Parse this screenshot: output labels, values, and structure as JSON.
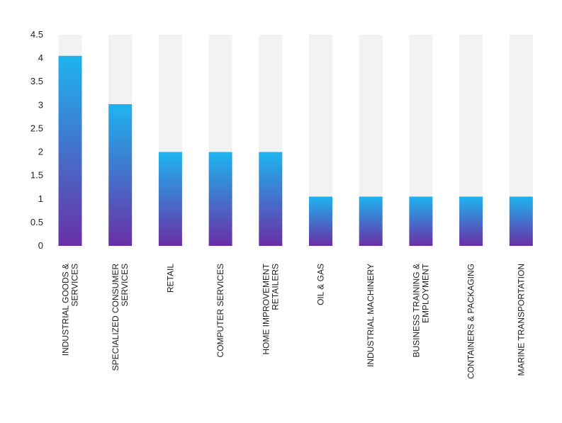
{
  "chart_data": {
    "type": "bar",
    "categories": [
      "INDUSTRIAL GOODS & SERVICES",
      "SPECIALIZED CONSUMER SERVICES",
      "RETAIL",
      "COMPUTER SERVICES",
      "HOME IMPROVEMENT RETAILERS",
      "OIL & GAS",
      "INDUSTRIAL MACHINERY",
      "BUSINESS TRAINING & EMPLOYMENT",
      "CONTAINERS & PACKAGING",
      "MARINE TRANSPORTATION"
    ],
    "category_lines": [
      [
        "INDUSTRIAL GOODS &",
        "SERVICES"
      ],
      [
        "SPECIALIZED CONSUMER",
        "SERVICES"
      ],
      [
        "RETAIL"
      ],
      [
        "COMPUTER SERVICES"
      ],
      [
        "HOME IMPROVEMENT",
        "RETAILERS"
      ],
      [
        "OIL & GAS"
      ],
      [
        "INDUSTRIAL MACHINERY"
      ],
      [
        "BUSINESS TRAINING &",
        "EMPLOYMENT"
      ],
      [
        "CONTAINERS & PACKAGING"
      ],
      [
        "MARINE TRANSPORTATION"
      ]
    ],
    "values": [
      4.05,
      3.02,
      2.0,
      2.0,
      2.0,
      1.05,
      1.05,
      1.05,
      1.05,
      1.05
    ],
    "ylim": [
      0,
      4.5
    ],
    "yticks": [
      "0",
      "0.5",
      "1",
      "1.5",
      "2",
      "2.5",
      "3",
      "3.5",
      "4",
      "4.5"
    ],
    "title": "",
    "xlabel": "",
    "ylabel": "",
    "grid": false,
    "colors": {
      "bar_top": "#1eb4ef",
      "bar_bottom": "#6a2fa6",
      "track": "#f2f2f2"
    }
  }
}
